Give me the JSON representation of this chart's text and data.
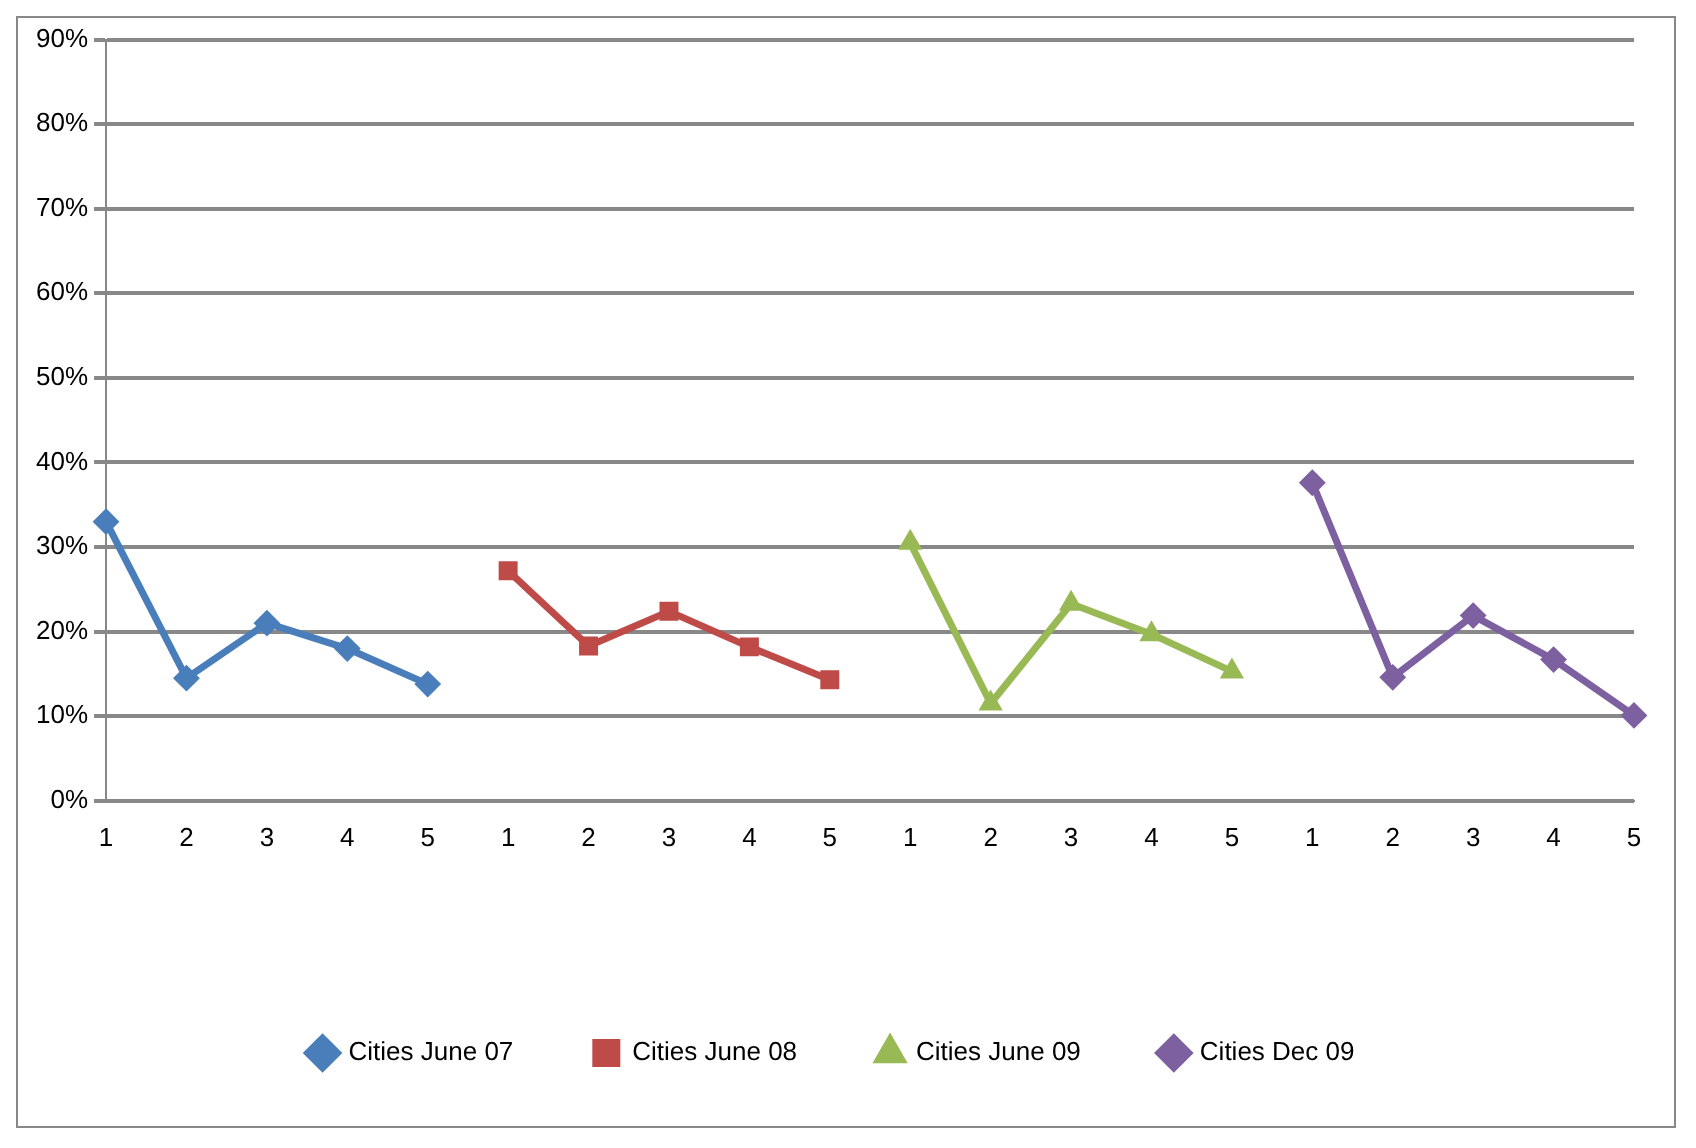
{
  "chart_data": {
    "type": "line",
    "categories": [
      "1",
      "2",
      "3",
      "4",
      "5",
      "1",
      "2",
      "3",
      "4",
      "5",
      "1",
      "2",
      "3",
      "4",
      "5",
      "1",
      "2",
      "3",
      "4",
      "5"
    ],
    "series": [
      {
        "name": "Cities June 07",
        "color": "#4a7ebb",
        "marker": "diamond",
        "values": [
          33,
          14.5,
          21,
          18,
          13.8,
          null,
          null,
          null,
          null,
          null,
          null,
          null,
          null,
          null,
          null,
          null,
          null,
          null,
          null,
          null
        ]
      },
      {
        "name": "Cities June 08",
        "color": "#be4b48",
        "marker": "square",
        "values": [
          null,
          null,
          null,
          null,
          null,
          27.2,
          18.3,
          22.4,
          18.2,
          14.3,
          null,
          null,
          null,
          null,
          null,
          null,
          null,
          null,
          null,
          null
        ]
      },
      {
        "name": "Cities June 09",
        "color": "#98b954",
        "marker": "triangle",
        "values": [
          null,
          null,
          null,
          null,
          null,
          null,
          null,
          null,
          null,
          null,
          30.5,
          11.5,
          23.3,
          19.7,
          15.3,
          null,
          null,
          null,
          null,
          null
        ]
      },
      {
        "name": "Cities Dec 09",
        "color": "#7d60a0",
        "marker": "diamond",
        "values": [
          null,
          null,
          null,
          null,
          null,
          null,
          null,
          null,
          null,
          null,
          null,
          null,
          null,
          null,
          null,
          37.6,
          14.6,
          21.9,
          16.7,
          10.1
        ]
      }
    ],
    "ylim": [
      0,
      90
    ],
    "yticks": [
      {
        "value": 0,
        "label": "0%"
      },
      {
        "value": 10,
        "label": "10%"
      },
      {
        "value": 20,
        "label": "20%"
      },
      {
        "value": 30,
        "label": "30%"
      },
      {
        "value": 40,
        "label": "40%"
      },
      {
        "value": 50,
        "label": "50%"
      },
      {
        "value": 60,
        "label": "60%"
      },
      {
        "value": 70,
        "label": "70%"
      },
      {
        "value": 80,
        "label": "80%"
      },
      {
        "value": 90,
        "label": "90%"
      }
    ],
    "grid": "y",
    "legend": "bottom",
    "line_style": "solid"
  }
}
